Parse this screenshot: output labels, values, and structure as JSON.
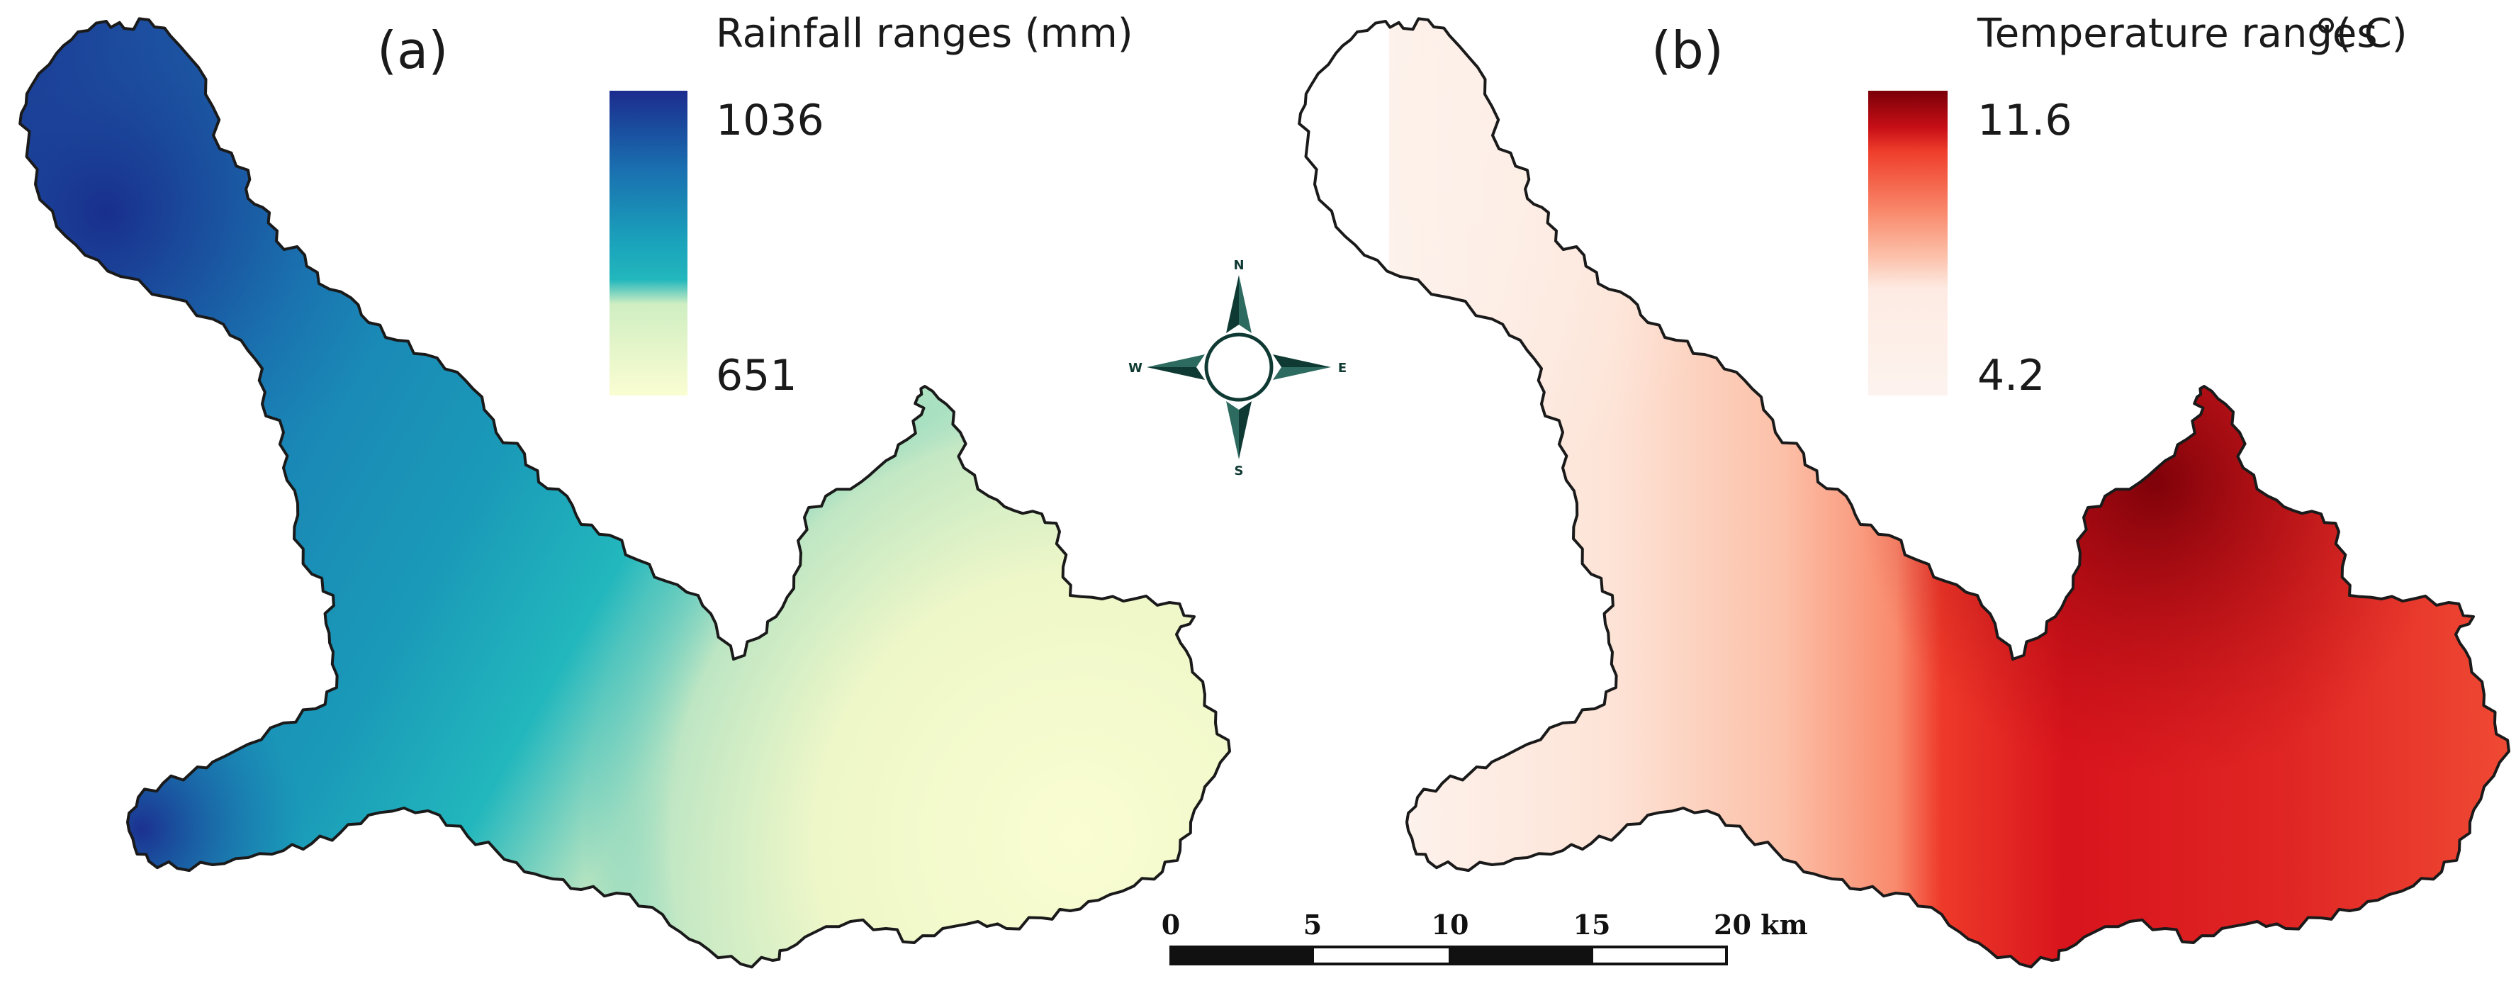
{
  "panels": [
    {
      "id": "a",
      "panel_label": "(a)",
      "legend": {
        "title": "Rainfall ranges (mm)",
        "max_label": "1036",
        "min_label": "651"
      },
      "colors": {
        "dark": "#1b2c8e",
        "mid": "#1a7fb5",
        "teal": "#22b7bd",
        "light": "#dff2c4",
        "pale": "#fafdd2"
      }
    },
    {
      "id": "b",
      "panel_label": "(b)",
      "legend": {
        "title": "Temperature ranges",
        "unit": "( C)",
        "max_label": "11.6",
        "min_label": "4.2"
      },
      "colors": {
        "dark": "#7a0008",
        "red": "#d8141c",
        "salmon": "#f98a6c",
        "pale": "#fde7dd",
        "white": "#fdf3ee"
      }
    }
  ],
  "compass": {
    "n": "N",
    "s": "S",
    "e": "E",
    "w": "W",
    "color": "#0f3a33"
  },
  "scalebar": {
    "ticks": [
      "0",
      "5",
      "10",
      "15"
    ],
    "end_label": "20 km"
  }
}
